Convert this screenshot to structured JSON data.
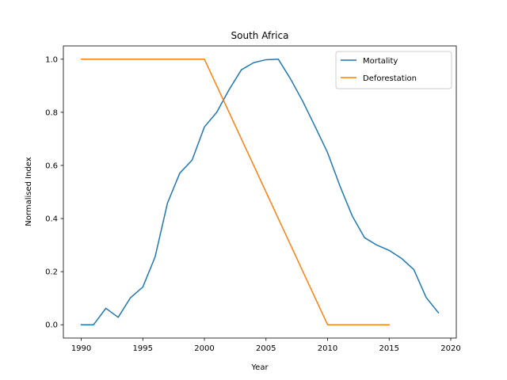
{
  "chart_data": {
    "type": "line",
    "title": "South Africa",
    "xlabel": "Year",
    "ylabel": "Normalised Index",
    "xlim": [
      1988.55,
      2020.45
    ],
    "ylim": [
      -0.05,
      1.05
    ],
    "xticks": [
      1990,
      1995,
      2000,
      2005,
      2010,
      2015,
      2020
    ],
    "yticks": [
      0.0,
      0.2,
      0.4,
      0.6,
      0.8,
      1.0
    ],
    "ytick_labels": [
      "0.0",
      "0.2",
      "0.4",
      "0.6",
      "0.8",
      "1.0"
    ],
    "grid": false,
    "legend": "top-right",
    "series": [
      {
        "name": "Mortality",
        "color": "#1f77b4",
        "x": [
          1990,
          1991,
          1992,
          1993,
          1994,
          1995,
          1996,
          1997,
          1998,
          1999,
          2000,
          2001,
          2002,
          2003,
          2004,
          2005,
          2006,
          2007,
          2008,
          2009,
          2010,
          2011,
          2012,
          2013,
          2014,
          2015,
          2016,
          2017,
          2018,
          2019
        ],
        "y": [
          0.0,
          0.0,
          0.062,
          0.028,
          0.102,
          0.142,
          0.256,
          0.458,
          0.571,
          0.62,
          0.745,
          0.8,
          0.885,
          0.96,
          0.987,
          0.998,
          1.0,
          0.925,
          0.84,
          0.745,
          0.648,
          0.523,
          0.41,
          0.328,
          0.3,
          0.28,
          0.25,
          0.208,
          0.103,
          0.045
        ]
      },
      {
        "name": "Deforestation",
        "color": "#ff7f0e",
        "x": [
          1990,
          1991,
          1992,
          1993,
          1994,
          1995,
          1996,
          1997,
          1998,
          1999,
          2000,
          2001,
          2002,
          2003,
          2004,
          2005,
          2006,
          2007,
          2008,
          2009,
          2010,
          2011,
          2012,
          2013,
          2014,
          2015
        ],
        "y": [
          1.0,
          1.0,
          1.0,
          1.0,
          1.0,
          1.0,
          1.0,
          1.0,
          1.0,
          1.0,
          1.0,
          0.9,
          0.8,
          0.7,
          0.6,
          0.5,
          0.4,
          0.3,
          0.2,
          0.1,
          0.0,
          0.0,
          0.0,
          0.0,
          0.0,
          0.0
        ]
      }
    ]
  }
}
